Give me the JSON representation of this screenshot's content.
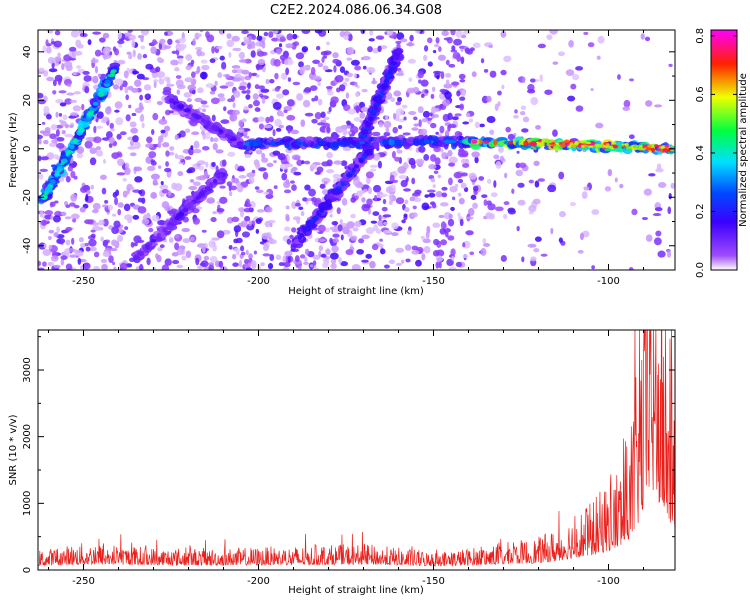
{
  "title": "C2E2.2024.086.06.34.G08",
  "chart_data": [
    {
      "type": "heatmap",
      "xlabel": "Height of straight line (km)",
      "ylabel": "Frequency (Hz)",
      "xlim": [
        -263,
        -81
      ],
      "ylim": [
        -50,
        49
      ],
      "xticks": [
        -250,
        -200,
        -150,
        -100
      ],
      "yticks": [
        -40,
        -20,
        0,
        20,
        40
      ],
      "colorbar": {
        "label": "Normalized spectral amplitude",
        "range": [
          0,
          0.82
        ],
        "ticks": [
          "0.0",
          "0.2",
          "0.4",
          "0.6",
          "0.8"
        ],
        "tick_values": [
          0.0,
          0.2,
          0.4,
          0.6,
          0.8
        ],
        "colors": [
          "#ffffff",
          "#8b00ff",
          "#0000ff",
          "#00ffff",
          "#00ff00",
          "#ffff00",
          "#ff0000",
          "#ff00ff"
        ]
      },
      "features": [
        {
          "name": "",
          "x": [
            -262,
            -241
          ],
          "y": [
            -22,
            33
          ],
          "amplitude": 0.3
        },
        {
          "name": "",
          "x": [
            -205,
            -140
          ],
          "y": [
            2,
            3
          ],
          "amplitude": 0.2
        },
        {
          "name": "",
          "x": [
            -140,
            -81
          ],
          "y": [
            3,
            0
          ],
          "amplitude": 0.5
        },
        {
          "name": "",
          "x": [
            -235,
            -210
          ],
          "y": [
            -45,
            -10
          ],
          "amplitude": 0.1
        },
        {
          "name": "",
          "x": [
            -190,
            -168
          ],
          "y": [
            -40,
            0
          ],
          "amplitude": 0.15
        },
        {
          "name": "",
          "x": [
            -170,
            -160
          ],
          "y": [
            5,
            40
          ],
          "amplitude": 0.15
        },
        {
          "name": "",
          "x": [
            -205,
            -225
          ],
          "y": [
            2,
            20
          ],
          "amplitude": 0.1
        }
      ]
    },
    {
      "type": "line",
      "xlabel": "Height of straight line (km)",
      "ylabel": "SNR (10 * v/v)",
      "xlim": [
        -263,
        -81
      ],
      "ylim": [
        0,
        3600
      ],
      "xticks": [
        -250,
        -200,
        -150,
        -100
      ],
      "yticks": [
        0,
        1000,
        2000,
        3000
      ],
      "color": "#e8201c",
      "envelope": {
        "x": [
          -263,
          -250,
          -230,
          -210,
          -190,
          -170,
          -150,
          -140,
          -130,
          -120,
          -115,
          -110,
          -105,
          -100,
          -95,
          -92,
          -90,
          -88,
          -85,
          -83,
          -81
        ],
        "y": [
          180,
          250,
          210,
          200,
          220,
          240,
          170,
          200,
          250,
          300,
          380,
          520,
          620,
          820,
          1100,
          1800,
          2600,
          3550,
          2700,
          2200,
          1600
        ]
      }
    }
  ]
}
